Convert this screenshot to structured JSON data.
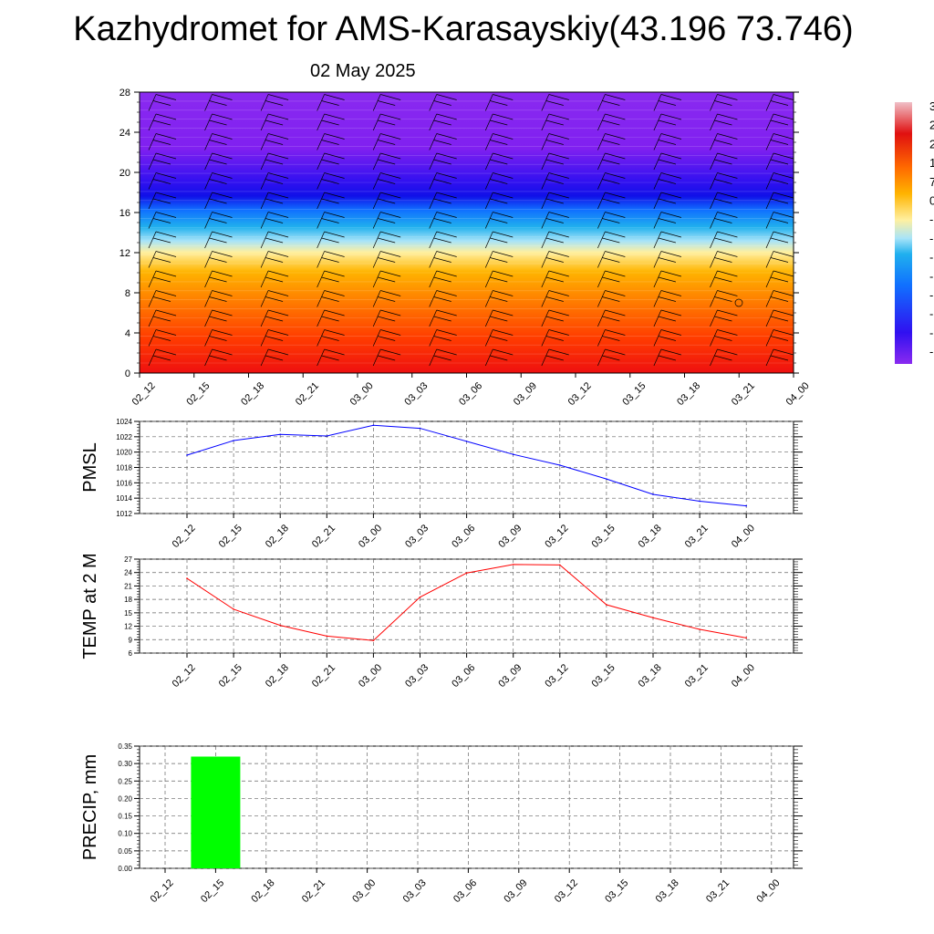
{
  "title": "Kazhydromet for AMS-Karasayskiy(43.196 73.746)",
  "subtitle": "02 May 2025",
  "time_labels": [
    "02_12",
    "02_15",
    "02_18",
    "02_21",
    "03_00",
    "03_03",
    "03_06",
    "03_09",
    "03_12",
    "03_15",
    "03_18",
    "03_21",
    "04_00"
  ],
  "chart_data": [
    {
      "type": "heatmap",
      "title": "",
      "y_ticks": [
        0,
        4,
        8,
        12,
        16,
        20,
        24,
        28
      ],
      "ylim": [
        0,
        28
      ],
      "x": [
        "02_12",
        "02_15",
        "02_18",
        "02_21",
        "03_00",
        "03_03",
        "03_06",
        "03_09",
        "03_12",
        "03_15",
        "03_18",
        "03_21",
        "04_00"
      ],
      "temperature_by_level": [
        {
          "level": 0,
          "temp": 20
        },
        {
          "level": 4,
          "temp": 15
        },
        {
          "level": 8,
          "temp": 8
        },
        {
          "level": 12,
          "temp": 0
        },
        {
          "level": 14,
          "temp": -10
        },
        {
          "level": 16,
          "temp": -28
        },
        {
          "level": 18,
          "temp": -45
        },
        {
          "level": 20,
          "temp": -52
        },
        {
          "level": 24,
          "temp": -55
        },
        {
          "level": 28,
          "temp": -55
        }
      ],
      "colorbar_labels": [
        "3",
        "2",
        "2",
        "1",
        "7",
        "0",
        "-",
        "-",
        "-",
        "-",
        "-",
        "-",
        "-",
        "-"
      ],
      "overlay": "wind barbs"
    },
    {
      "type": "line",
      "ylabel": "PMSL",
      "x": [
        "02_12",
        "02_15",
        "02_18",
        "02_21",
        "03_00",
        "03_03",
        "03_06",
        "03_09",
        "03_12",
        "03_15",
        "03_18",
        "03_21",
        "04_00"
      ],
      "y_ticks": [
        1012,
        1014,
        1016,
        1018,
        1020,
        1022,
        1024
      ],
      "ylim": [
        1012,
        1024
      ],
      "series": [
        {
          "values": [
            1019.6,
            1021.5,
            1022.3,
            1022.1,
            1023.5,
            1023.1,
            1021.4,
            1019.7,
            1018.3,
            1016.5,
            1014.5,
            1013.6,
            1013.0
          ],
          "color": "#0000ff"
        }
      ],
      "grid": true
    },
    {
      "type": "line",
      "ylabel": "TEMP at 2 M",
      "x": [
        "02_12",
        "02_15",
        "02_18",
        "02_21",
        "03_00",
        "03_03",
        "03_06",
        "03_09",
        "03_12",
        "03_15",
        "03_18",
        "03_21",
        "04_00"
      ],
      "y_ticks": [
        6,
        9,
        12,
        15,
        18,
        21,
        24,
        27
      ],
      "ylim": [
        6,
        27
      ],
      "series": [
        {
          "values": [
            22.7,
            15.8,
            12.2,
            9.8,
            8.8,
            18.5,
            23.9,
            25.8,
            25.7,
            16.8,
            13.9,
            11.3,
            9.4
          ],
          "color": "#ff0000"
        }
      ],
      "grid": true
    },
    {
      "type": "bar",
      "ylabel": "PRECIP, mm",
      "categories": [
        "02_12",
        "02_15",
        "02_18",
        "02_21",
        "03_00",
        "03_03",
        "03_06",
        "03_09",
        "03_12",
        "03_15",
        "03_18",
        "03_21",
        "04_00"
      ],
      "y_ticks": [
        "0.00",
        "0.05",
        "0.10",
        "0.15",
        "0.20",
        "0.25",
        "0.30",
        "0.35"
      ],
      "ylim": [
        0,
        0.35
      ],
      "values": [
        0,
        0.32,
        0,
        0,
        0,
        0,
        0,
        0,
        0,
        0,
        0,
        0,
        0
      ],
      "color": "#00ff00",
      "grid": true
    }
  ]
}
